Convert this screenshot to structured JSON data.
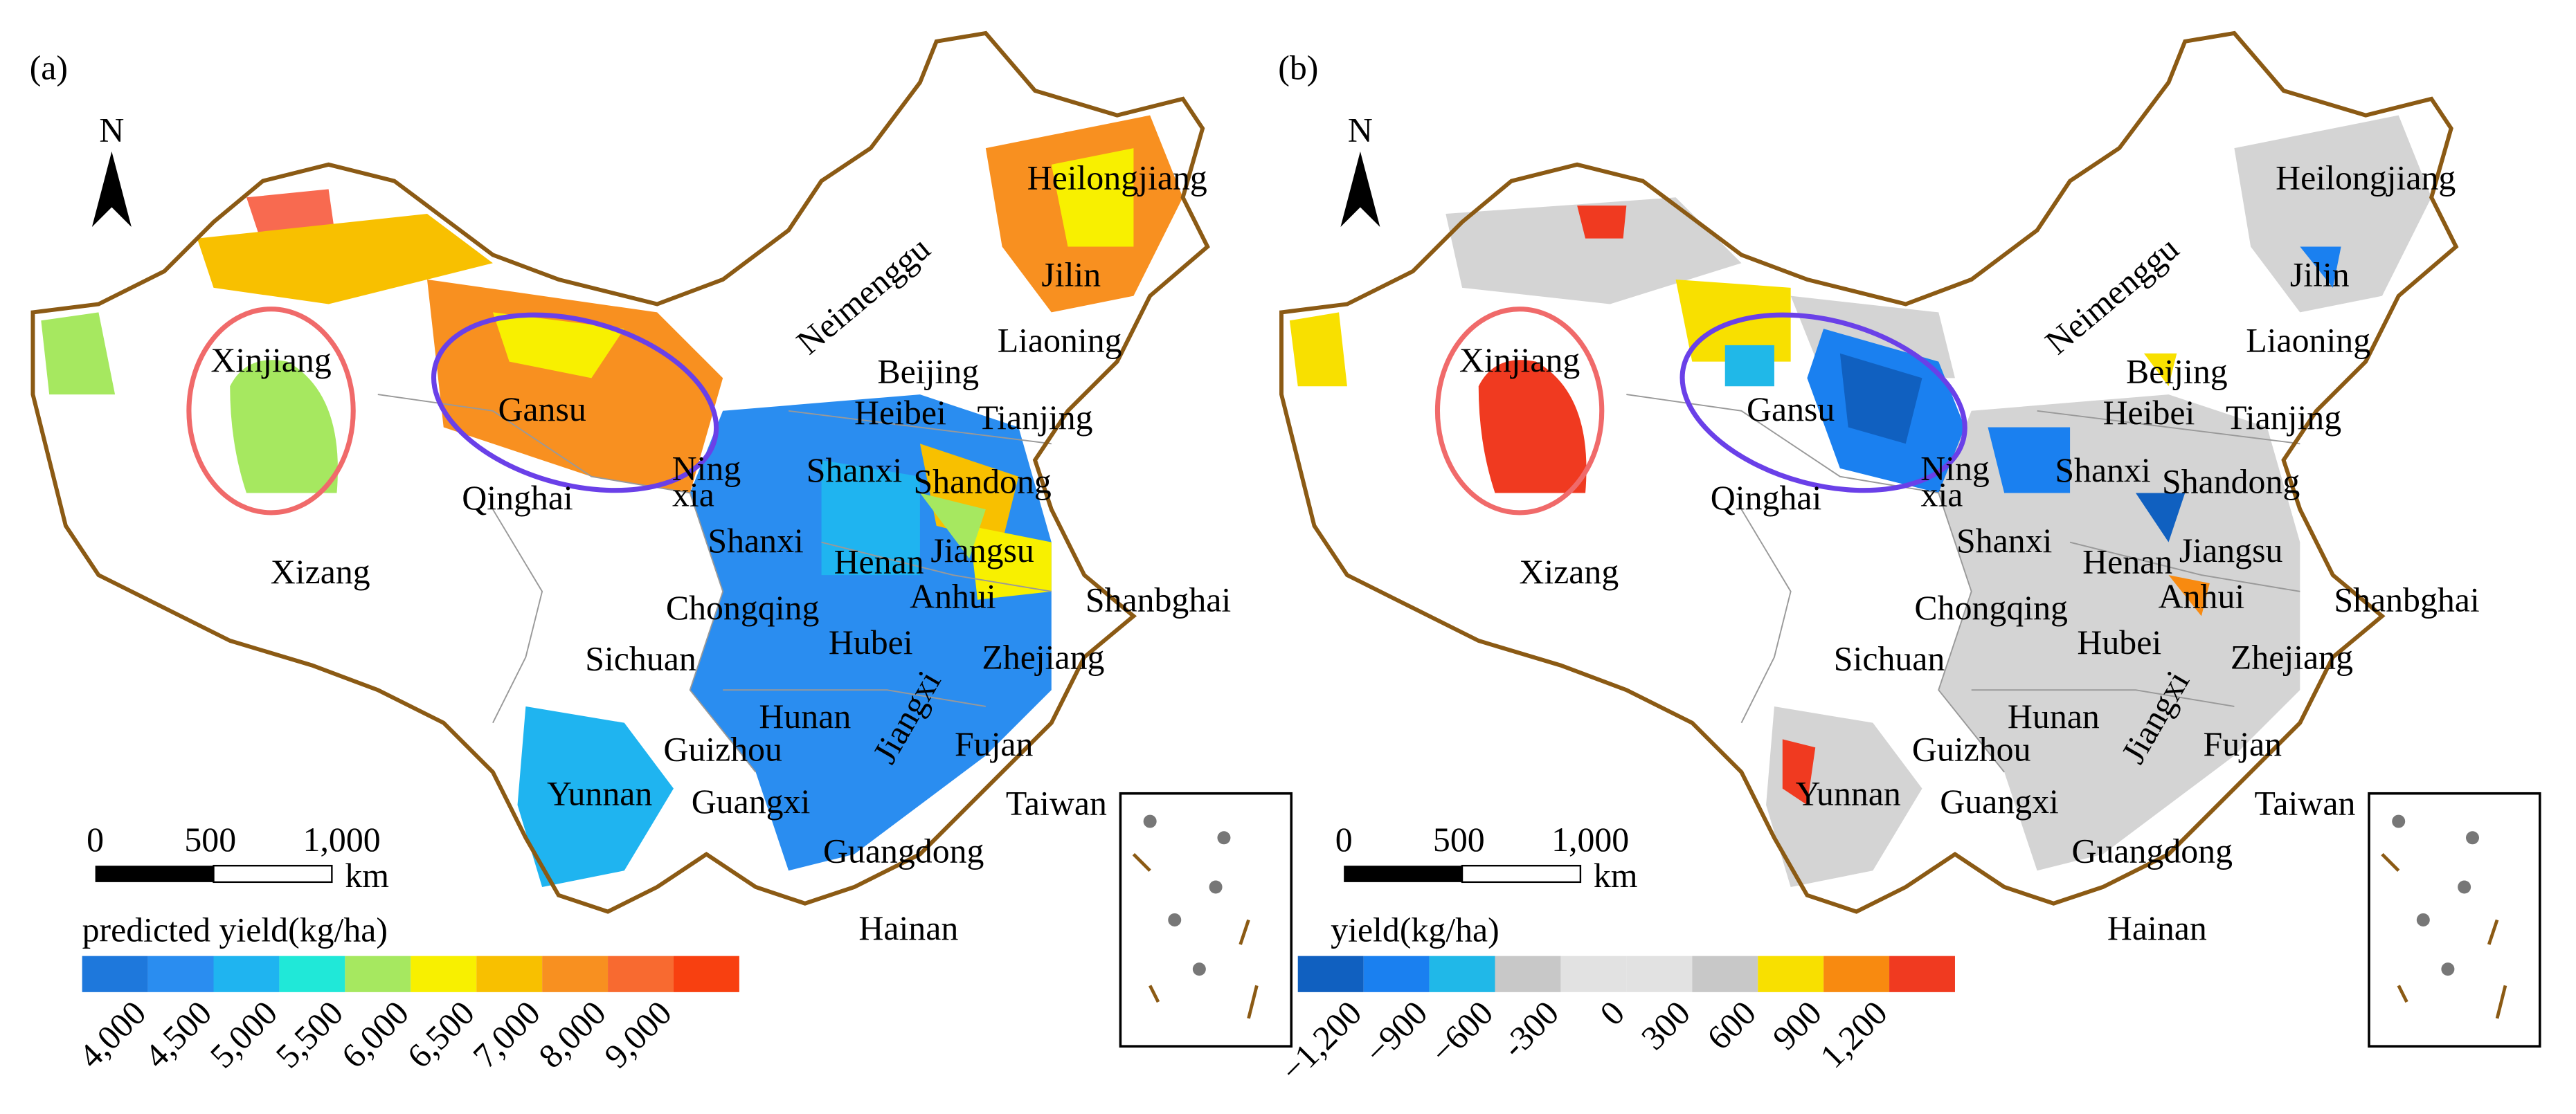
{
  "panels": [
    {
      "label": "(a)",
      "north": "N",
      "provinces": [
        "Heilongjiang",
        "Jilin",
        "Liaoning",
        "Neimenggu",
        "Beijing",
        "Heibei",
        "Tianjing",
        "Xinjiang",
        "Gansu",
        "Qinghai",
        "Ning",
        "xia",
        "Shanxi",
        "Shandong",
        "Shanxi",
        "Henan",
        "Jiangsu",
        "Xizang",
        "Chongqing",
        "Anhui",
        "Shanbghai",
        "Sichuan",
        "Hubei",
        "Zhejiang",
        "Jiangxi",
        "Hunan",
        "Guizhou",
        "Fujan",
        "Yunnan",
        "Guangxi",
        "Taiwan",
        "Guangdong",
        "Hainan"
      ],
      "scale": {
        "ticks": [
          "0",
          "500",
          "1,000"
        ],
        "unit": "km"
      },
      "legend": {
        "title": "predicted yield(kg/ha)",
        "colors": [
          "#1e78dc",
          "#2a8df0",
          "#1fb4f0",
          "#20e8d8",
          "#a6e860",
          "#f8f000",
          "#f8c000",
          "#f89020",
          "#f86a30",
          "#f84010"
        ],
        "ticks": [
          "4,000",
          "4,500",
          "5,000",
          "5,500",
          "6,000",
          "6,500",
          "7,000",
          "8,000",
          "9,000"
        ]
      }
    },
    {
      "label": "(b)",
      "north": "N",
      "provinces": [
        "Heilongjiang",
        "Jilin",
        "Liaoning",
        "Neimenggu",
        "Beijing",
        "Heibei",
        "Tianjing",
        "Xinjiang",
        "Gansu",
        "Qinghai",
        "Ning",
        "xia",
        "Shanxi",
        "Shandong",
        "Shanxi",
        "Henan",
        "Jiangsu",
        "Xizang",
        "Chongqing",
        "Anhui",
        "Shanbghai",
        "Sichuan",
        "Hubei",
        "Zhejiang",
        "Jiangxi",
        "Hunan",
        "Guizhou",
        "Fujan",
        "Yunnan",
        "Guangxi",
        "Taiwan",
        "Guangdong",
        "Hainan"
      ],
      "scale": {
        "ticks": [
          "0",
          "500",
          "1,000"
        ],
        "unit": "km"
      },
      "legend": {
        "title": "yield(kg/ha)",
        "colors": [
          "#1060c0",
          "#1a80f0",
          "#20b8e8",
          "#c8c8c8",
          "#e2e2e2",
          "#e2e2e2",
          "#c8c8c8",
          "#f8e000",
          "#f88a10",
          "#f03a20"
        ],
        "ticks": [
          "−1,200",
          "−900",
          "−600",
          "-300",
          "0",
          "300",
          "600",
          "900",
          "1,200"
        ]
      }
    }
  ]
}
